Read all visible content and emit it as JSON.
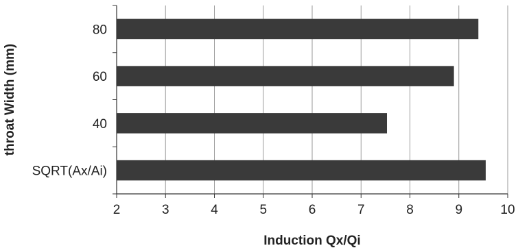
{
  "chart_data": {
    "type": "bar",
    "orientation": "horizontal",
    "categories": [
      "SQRT(Ax/Ai)",
      "40",
      "60",
      "80"
    ],
    "values": [
      9.55,
      7.53,
      8.9,
      9.4
    ],
    "xlabel": "Induction Qx/Qi",
    "ylabel": "throat Width (mm)",
    "xlim": [
      2,
      10
    ],
    "xticks": [
      "2",
      "3",
      "4",
      "5",
      "6",
      "7",
      "8",
      "9",
      "10"
    ],
    "grid": "vertical",
    "legend": "none",
    "colors": {
      "bar": "#3a3a3a",
      "grid": "#9a9a9a",
      "axis": "#333333"
    }
  }
}
